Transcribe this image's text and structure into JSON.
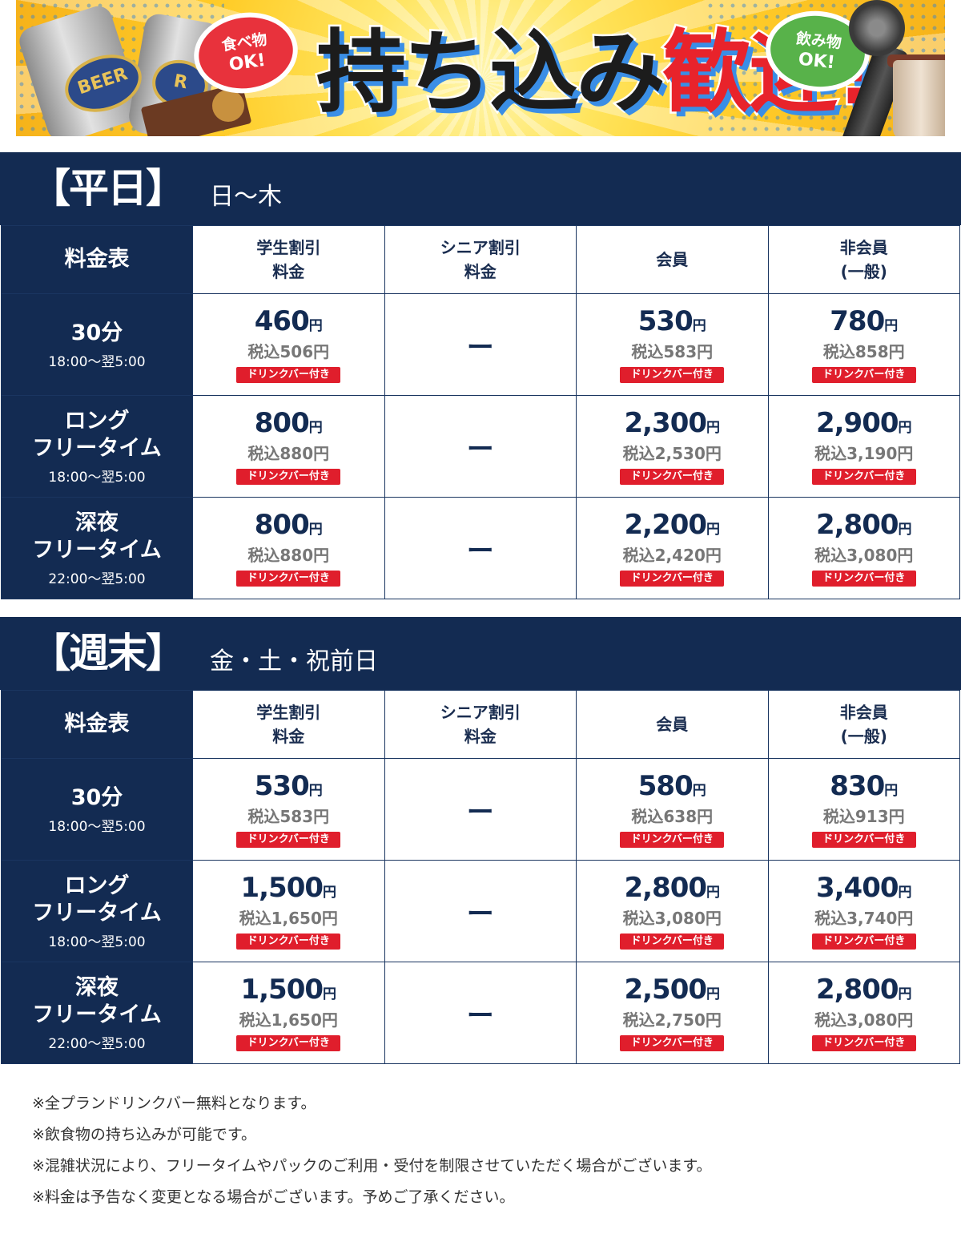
{
  "banner": {
    "headline_dark": "持ち込み",
    "headline_red": "歓迎!",
    "bubble_food_line1": "食べ物",
    "bubble_food_line2": "OK!",
    "bubble_drink_line1": "飲み物",
    "bubble_drink_line2": "OK!",
    "beer_text": "BEER",
    "beer_text2": "R"
  },
  "colors": {
    "navy": "#132b52",
    "red": "#e01e2c",
    "yellow": "#ffcd2a"
  },
  "columns": {
    "corner": "料金表",
    "student_l1": "学生割引",
    "student_l2": "料金",
    "senior_l1": "シニア割引",
    "senior_l2": "料金",
    "member": "会員",
    "nonmember_l1": "非会員",
    "nonmember_l2": "(一般)"
  },
  "badge": "ドリンクバー付き",
  "yen": "円",
  "dash": "ー",
  "weekday": {
    "title": "【平日】",
    "days": "日〜木",
    "rows": [
      {
        "name_l1": "30分",
        "name_l2": "",
        "time": "18:00〜翌5:00",
        "student": "460",
        "student_tax": "税込506円",
        "member": "530",
        "member_tax": "税込583円",
        "nonmember": "780",
        "nonmember_tax": "税込858円"
      },
      {
        "name_l1": "ロング",
        "name_l2": "フリータイム",
        "time": "18:00〜翌5:00",
        "student": "800",
        "student_tax": "税込880円",
        "member": "2,300",
        "member_tax": "税込2,530円",
        "nonmember": "2,900",
        "nonmember_tax": "税込3,190円"
      },
      {
        "name_l1": "深夜",
        "name_l2": "フリータイム",
        "time": "22:00〜翌5:00",
        "student": "800",
        "student_tax": "税込880円",
        "member": "2,200",
        "member_tax": "税込2,420円",
        "nonmember": "2,800",
        "nonmember_tax": "税込3,080円"
      }
    ]
  },
  "weekend": {
    "title": "【週末】",
    "days": "金・土・祝前日",
    "rows": [
      {
        "name_l1": "30分",
        "name_l2": "",
        "time": "18:00〜翌5:00",
        "student": "530",
        "student_tax": "税込583円",
        "member": "580",
        "member_tax": "税込638円",
        "nonmember": "830",
        "nonmember_tax": "税込913円"
      },
      {
        "name_l1": "ロング",
        "name_l2": "フリータイム",
        "time": "18:00〜翌5:00",
        "student": "1,500",
        "student_tax": "税込1,650円",
        "member": "2,800",
        "member_tax": "税込3,080円",
        "nonmember": "3,400",
        "nonmember_tax": "税込3,740円"
      },
      {
        "name_l1": "深夜",
        "name_l2": "フリータイム",
        "time": "22:00〜翌5:00",
        "student": "1,500",
        "student_tax": "税込1,650円",
        "member": "2,500",
        "member_tax": "税込2,750円",
        "nonmember": "2,800",
        "nonmember_tax": "税込3,080円"
      }
    ]
  },
  "notes": [
    "※全プランドリンクバー無料となります。",
    "※飲食物の持ち込みが可能です。",
    "※混雑状況により、フリータイムやパックのご利用・受付を制限させていただく場合がございます。",
    "※料金は予告なく変更となる場合がございます。予めご了承ください。"
  ]
}
